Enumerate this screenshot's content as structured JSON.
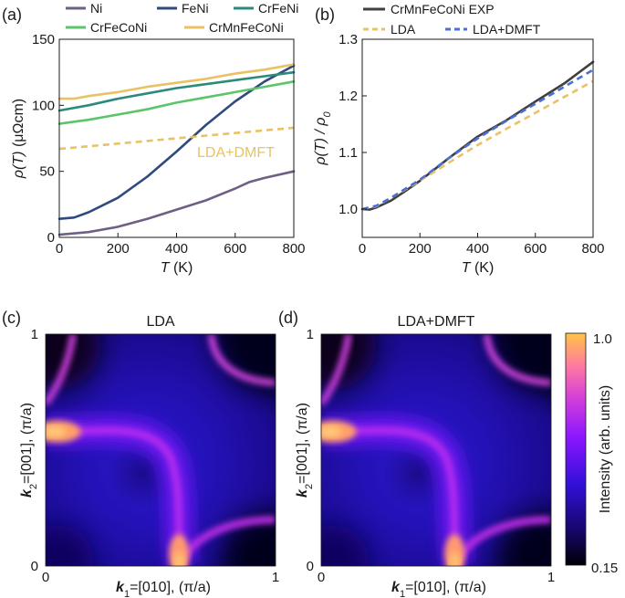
{
  "colors": {
    "Ni": "#6e5f85",
    "FeNi": "#2f4a7f",
    "CrFeNi": "#2c8a7c",
    "CrFeCoNi": "#5cc46a",
    "CrMnFeCoNi": "#e8c264",
    "exp": "#404040",
    "lda": "#e8c264",
    "dmft": "#4a6fd6"
  },
  "panels": {
    "a": "(a)",
    "b": "(b)",
    "c": "(c)",
    "d": "(d)"
  },
  "chart_data": [
    {
      "id": "a",
      "type": "line",
      "xlabel": {
        "var": "T",
        "unit": " (K)"
      },
      "ylabel": {
        "var": "ρ(T)",
        "unit": " (μΩcm)"
      },
      "xlim": [
        0,
        800
      ],
      "ylim": [
        0,
        150
      ],
      "xticks": [
        0,
        200,
        400,
        600,
        800
      ],
      "yticks": [
        0,
        50,
        100,
        150
      ],
      "annotation": "LDA+DMFT",
      "series": [
        {
          "name": "Ni",
          "color": "#6e5f85",
          "dash": false,
          "x": [
            0,
            100,
            200,
            300,
            400,
            500,
            600,
            650,
            700,
            800
          ],
          "y": [
            2,
            4,
            8,
            14,
            21,
            28,
            37,
            42,
            45,
            50
          ]
        },
        {
          "name": "FeNi",
          "color": "#2f4a7f",
          "dash": false,
          "x": [
            0,
            50,
            100,
            200,
            300,
            400,
            500,
            600,
            700,
            800
          ],
          "y": [
            14,
            15,
            19,
            30,
            46,
            65,
            85,
            103,
            118,
            130
          ]
        },
        {
          "name": "CrFeNi",
          "color": "#2c8a7c",
          "dash": false,
          "x": [
            0,
            100,
            200,
            300,
            400,
            500,
            600,
            700,
            800
          ],
          "y": [
            96,
            100,
            105,
            109,
            113,
            116,
            119,
            122,
            125
          ]
        },
        {
          "name": "CrFeCoNi",
          "color": "#5cc46a",
          "dash": false,
          "x": [
            0,
            100,
            200,
            300,
            400,
            500,
            600,
            700,
            800
          ],
          "y": [
            86,
            89,
            93,
            97,
            102,
            106,
            110,
            114,
            118
          ]
        },
        {
          "name": "CrMnFeCoNi",
          "color": "#e8c264",
          "dash": false,
          "x": [
            0,
            50,
            100,
            200,
            300,
            400,
            500,
            600,
            700,
            800
          ],
          "y": [
            105,
            105,
            107,
            110,
            114,
            117,
            120,
            124,
            127,
            131
          ]
        },
        {
          "name": "LDA+DMFT",
          "color": "#e8c264",
          "dash": true,
          "legend": false,
          "x": [
            0,
            100,
            200,
            300,
            400,
            500,
            600,
            700,
            800
          ],
          "y": [
            67,
            69,
            71,
            73,
            75,
            77,
            79,
            81,
            83
          ]
        }
      ]
    },
    {
      "id": "b",
      "type": "line",
      "xlabel": {
        "var": "T",
        "unit": " (K)"
      },
      "ylabel": {
        "var": "ρ(T) / ρ",
        "sub": "0"
      },
      "xlim": [
        0,
        800
      ],
      "ylim": [
        0.95,
        1.3
      ],
      "xticks": [
        0,
        200,
        400,
        600,
        800
      ],
      "yticks": [
        1.0,
        1.1,
        1.2,
        1.3
      ],
      "series": [
        {
          "name": "CrMnFeCoNi EXP",
          "color": "#404040",
          "dash": false,
          "x": [
            0,
            25,
            50,
            100,
            150,
            200,
            300,
            400,
            500,
            600,
            700,
            800
          ],
          "y": [
            1.0,
            0.999,
            1.003,
            1.015,
            1.032,
            1.05,
            1.09,
            1.128,
            1.157,
            1.19,
            1.222,
            1.26
          ]
        },
        {
          "name": "LDA",
          "color": "#e8c264",
          "dash": true,
          "x": [
            0,
            50,
            100,
            200,
            300,
            400,
            500,
            600,
            700,
            800
          ],
          "y": [
            1.0,
            1.005,
            1.02,
            1.05,
            1.082,
            1.113,
            1.142,
            1.17,
            1.198,
            1.226
          ]
        },
        {
          "name": "LDA+DMFT",
          "color": "#4a6fd6",
          "dash": true,
          "x": [
            0,
            50,
            100,
            200,
            300,
            400,
            500,
            600,
            700,
            800
          ],
          "y": [
            1.0,
            1.006,
            1.02,
            1.052,
            1.09,
            1.125,
            1.156,
            1.186,
            1.216,
            1.246
          ]
        }
      ]
    },
    {
      "id": "c",
      "type": "heatmap",
      "title": "LDA",
      "xlabel": {
        "var": "k",
        "sub": "1",
        "unit": "=[010], (π/a)"
      },
      "ylabel": {
        "var": "k",
        "sub": "2",
        "unit": "=[001], (π/a)"
      },
      "xlim": [
        0,
        1
      ],
      "ylim": [
        0,
        1
      ],
      "xticks": [
        0,
        1
      ],
      "yticks": [
        0,
        1
      ]
    },
    {
      "id": "d",
      "type": "heatmap",
      "title": "LDA+DMFT",
      "xlabel": {
        "var": "k",
        "sub": "1",
        "unit": "=[010], (π/a)"
      },
      "ylabel": {
        "var": "k",
        "sub": "2",
        "unit": "=[001], (π/a)"
      },
      "xlim": [
        0,
        1
      ],
      "ylim": [
        0,
        1
      ],
      "xticks": [
        0,
        1
      ],
      "yticks": [
        0,
        1
      ]
    }
  ],
  "colorbar": {
    "label": "Intensity (arb. units)",
    "max_label": "1.0",
    "min_label": "0.15",
    "range": [
      0.15,
      1.0
    ]
  }
}
